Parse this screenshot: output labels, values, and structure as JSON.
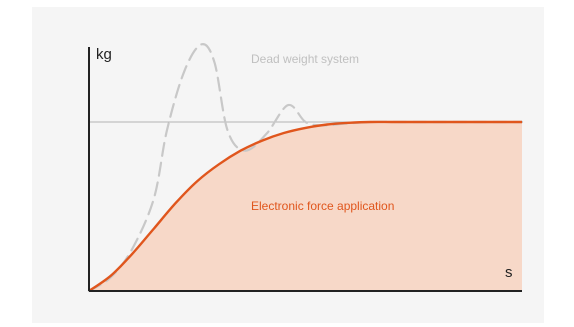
{
  "colors": {
    "background": "#f5f5f5",
    "axis": "#222222",
    "reference_line": "#b4b4b4",
    "electronic_line": "#e0561d",
    "electronic_fill": "#f7d8c8",
    "dead_weight_line": "#c8c8c8",
    "dead_weight_label": "#c0c0c0"
  },
  "chart_data": {
    "type": "line",
    "title": "",
    "ylabel": "kg",
    "xlabel": "s",
    "grid": false,
    "legend": "none",
    "xlim": [
      0,
      10
    ],
    "ylim": [
      0,
      1.6
    ],
    "reference_line": {
      "y": 1.0
    },
    "series": [
      {
        "name": "Electronic force application",
        "style": "solid-filled",
        "x": [
          0,
          0.5,
          1,
          1.5,
          2,
          2.5,
          3,
          3.5,
          4,
          4.5,
          5,
          5.5,
          6,
          6.5,
          7,
          7.5,
          8,
          8.5,
          9,
          9.5,
          10
        ],
        "y": [
          0,
          0.09,
          0.22,
          0.37,
          0.52,
          0.65,
          0.75,
          0.83,
          0.89,
          0.935,
          0.965,
          0.985,
          0.995,
          1.0,
          1.0,
          1.0,
          1.0,
          1.0,
          1.0,
          1.0,
          1.0
        ]
      },
      {
        "name": "Dead weight system",
        "style": "dashed",
        "x": [
          0,
          0.5,
          1,
          1.5,
          1.8,
          2.2,
          2.6,
          2.9,
          3.2,
          3.6,
          4.1,
          4.6,
          5.0,
          5.4,
          5.9,
          6.5,
          7.2,
          8.0,
          9.0,
          10
        ],
        "y": [
          0,
          0.08,
          0.25,
          0.55,
          0.95,
          1.3,
          1.46,
          1.35,
          0.95,
          0.83,
          0.93,
          1.1,
          1.0,
          0.98,
          0.99,
          1.0,
          1.0,
          1.0,
          1.0,
          1.0
        ]
      }
    ]
  }
}
